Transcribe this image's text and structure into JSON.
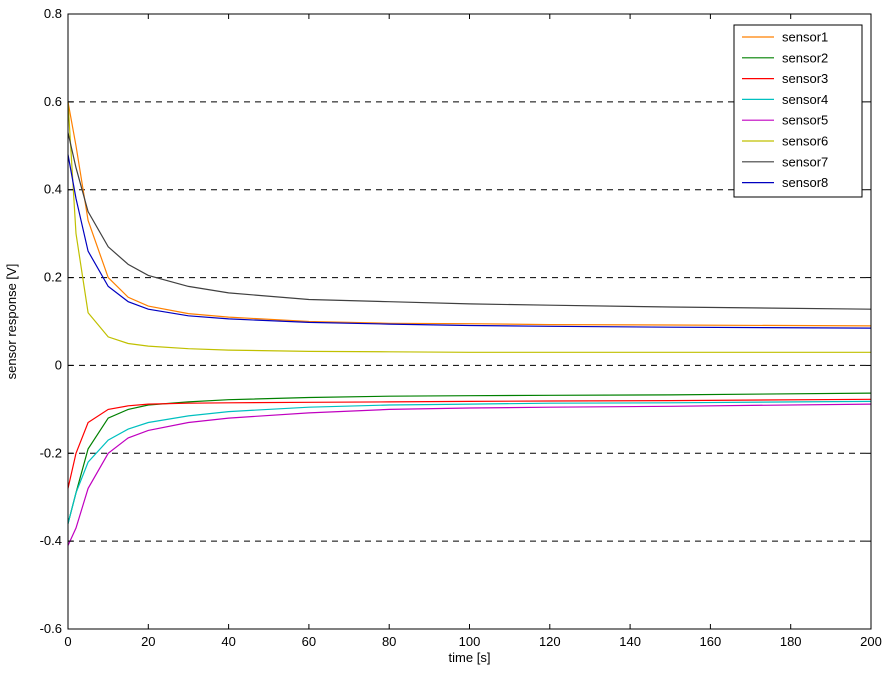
{
  "chart_data": {
    "type": "line",
    "xlabel": "time [s]",
    "ylabel": "sensor response [V]",
    "xlim": [
      0,
      200
    ],
    "ylim": [
      -0.6,
      0.8
    ],
    "xticks": [
      0,
      20,
      40,
      60,
      80,
      100,
      120,
      140,
      160,
      180,
      200
    ],
    "yticks": [
      -0.6,
      -0.4,
      -0.2,
      0,
      0.2,
      0.4,
      0.6,
      0.8
    ],
    "xtick_labels": [
      "0",
      "20",
      "40",
      "60",
      "80",
      "100",
      "120",
      "140",
      "160",
      "180",
      "200"
    ],
    "ytick_labels": [
      "-0.6",
      "-0.4",
      "-0.2",
      "0",
      "0.2",
      "0.4",
      "0.6",
      "0.8"
    ],
    "grid": "horizontal-dashed",
    "legend_position": "top-right",
    "series": [
      {
        "name": "sensor1",
        "color": "#ff8000",
        "x": [
          0,
          2,
          5,
          10,
          15,
          20,
          30,
          40,
          60,
          80,
          100,
          120,
          150,
          200
        ],
        "y": [
          0.6,
          0.5,
          0.33,
          0.2,
          0.155,
          0.135,
          0.118,
          0.11,
          0.1,
          0.096,
          0.095,
          0.093,
          0.092,
          0.09
        ]
      },
      {
        "name": "sensor2",
        "color": "#008000",
        "x": [
          0,
          2,
          5,
          10,
          15,
          20,
          30,
          40,
          60,
          80,
          100,
          120,
          150,
          200
        ],
        "y": [
          -0.36,
          -0.29,
          -0.19,
          -0.12,
          -0.1,
          -0.09,
          -0.083,
          -0.078,
          -0.073,
          -0.07,
          -0.069,
          -0.068,
          -0.067,
          -0.063
        ]
      },
      {
        "name": "sensor3",
        "color": "#ff0000",
        "x": [
          0,
          2,
          5,
          10,
          15,
          20,
          30,
          40,
          60,
          80,
          100,
          120,
          150,
          200
        ],
        "y": [
          -0.28,
          -0.2,
          -0.13,
          -0.1,
          -0.092,
          -0.088,
          -0.086,
          -0.085,
          -0.084,
          -0.083,
          -0.082,
          -0.081,
          -0.08,
          -0.077
        ]
      },
      {
        "name": "sensor4",
        "color": "#00c0c0",
        "x": [
          0,
          2,
          5,
          10,
          15,
          20,
          30,
          40,
          60,
          80,
          100,
          120,
          150,
          200
        ],
        "y": [
          -0.36,
          -0.29,
          -0.22,
          -0.17,
          -0.145,
          -0.13,
          -0.115,
          -0.105,
          -0.095,
          -0.09,
          -0.088,
          -0.086,
          -0.085,
          -0.082
        ]
      },
      {
        "name": "sensor5",
        "color": "#c000c0",
        "x": [
          0,
          2,
          5,
          10,
          15,
          20,
          30,
          40,
          60,
          80,
          100,
          120,
          150,
          200
        ],
        "y": [
          -0.41,
          -0.37,
          -0.28,
          -0.2,
          -0.165,
          -0.148,
          -0.13,
          -0.12,
          -0.108,
          -0.1,
          -0.097,
          -0.095,
          -0.093,
          -0.088
        ]
      },
      {
        "name": "sensor6",
        "color": "#c0c000",
        "x": [
          0,
          2,
          5,
          10,
          15,
          20,
          30,
          40,
          60,
          80,
          100,
          120,
          150,
          200
        ],
        "y": [
          0.6,
          0.3,
          0.12,
          0.065,
          0.05,
          0.044,
          0.038,
          0.035,
          0.032,
          0.031,
          0.03,
          0.03,
          0.03,
          0.03
        ]
      },
      {
        "name": "sensor7",
        "color": "#404040",
        "x": [
          0,
          2,
          5,
          10,
          15,
          20,
          30,
          40,
          60,
          80,
          100,
          120,
          150,
          200
        ],
        "y": [
          0.53,
          0.45,
          0.35,
          0.27,
          0.23,
          0.205,
          0.18,
          0.165,
          0.15,
          0.145,
          0.14,
          0.137,
          0.133,
          0.128
        ]
      },
      {
        "name": "sensor8",
        "color": "#0000c0",
        "x": [
          0,
          2,
          5,
          10,
          15,
          20,
          30,
          40,
          60,
          80,
          100,
          120,
          150,
          200
        ],
        "y": [
          0.48,
          0.38,
          0.26,
          0.18,
          0.145,
          0.128,
          0.113,
          0.106,
          0.098,
          0.094,
          0.091,
          0.089,
          0.087,
          0.085
        ]
      }
    ]
  }
}
